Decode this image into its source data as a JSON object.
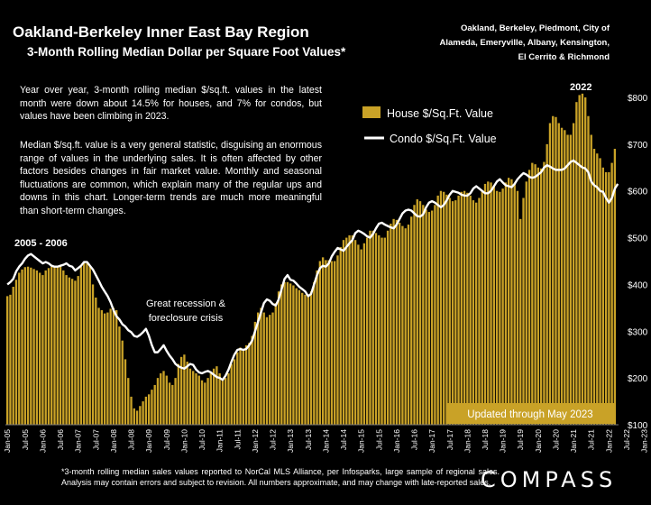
{
  "header": {
    "title": "Oakland-Berkeley Inner East Bay Region",
    "subtitle": "3-Month Rolling Median Dollar per Square Foot Values*",
    "region": "Oakland, Berkeley, Piedmont, City of Alameda, Emeryville, Albany, Kensington, El Cerrito & Richmond"
  },
  "commentary": {
    "para1": "Year over year, 3-month rolling median $/sq.ft. values in the latest month were down about 14.5% for houses, and 7% for condos, but values have been climbing in 2023.",
    "para2": "Median $/sq.ft. value is a very general statistic, disguising an enormous range of values in the underlying sales. It is often affected by other factors besides changes in fair market value. Monthly and seasonal fluctuations are common, which explain many of the regular ups and downs in this chart. Longer-term trends are much more meaningful than short-term changes."
  },
  "footnote": "*3-month rolling median sales values reported to NorCal MLS Alliance, per Infosparks, large sample of regional sales. Analysis may contain errors and subject to revision. All numbers approximate, and may change with late-reported sales.",
  "logo": "COMPASS",
  "colors": {
    "house": "#c9a227",
    "condo": "#ffffff",
    "background": "#000000",
    "badge": "#c9a227"
  },
  "chart_data": {
    "type": "bar",
    "x_labels": [
      "Jan-05",
      "Jul-05",
      "Jan-06",
      "Jul-06",
      "Jan-07",
      "Jul-07",
      "Jan-08",
      "Jul-08",
      "Jan-09",
      "Jul-09",
      "Jan-10",
      "Jul-10",
      "Jan-11",
      "Jul-11",
      "Jan-12",
      "Jul-12",
      "Jan-13",
      "Jul-13",
      "Jan-14",
      "Jul-14",
      "Jan-15",
      "Jul-15",
      "Jan-16",
      "Jul-16",
      "Jan-17",
      "Jul-17",
      "Jan-18",
      "Jul-18",
      "Jan-19",
      "Jul-19",
      "Jan-20",
      "Jul-20",
      "Jan-21",
      "Jul-21",
      "Jan-22",
      "Jul-22",
      "Jan-23"
    ],
    "y_ticks": [
      "$100",
      "$200",
      "$300",
      "$400",
      "$500",
      "$600",
      "$700",
      "$800"
    ],
    "ylim": [
      100,
      830
    ],
    "y_axis_position": "right",
    "legend": {
      "house": "House $/Sq.Ft. Value",
      "condo": "Condo $/Sq.Ft. Value",
      "placement": "top-right"
    },
    "annotations": {
      "peak_2006": "2005 - 2006",
      "recession": "Great recession & foreclosure crisis",
      "peak_2022": "2022",
      "updated": "Updated through May 2023"
    },
    "series": [
      {
        "name": "House $/Sq.Ft. Value",
        "type": "bar",
        "values": [
          375,
          378,
          395,
          410,
          425,
          432,
          437,
          438,
          436,
          433,
          430,
          425,
          420,
          430,
          435,
          438,
          440,
          440,
          438,
          430,
          420,
          415,
          412,
          408,
          418,
          438,
          448,
          445,
          440,
          400,
          372,
          350,
          345,
          338,
          340,
          348,
          350,
          345,
          310,
          280,
          240,
          200,
          160,
          135,
          130,
          140,
          150,
          160,
          165,
          175,
          185,
          200,
          210,
          215,
          205,
          190,
          185,
          200,
          230,
          245,
          250,
          235,
          220,
          215,
          210,
          205,
          195,
          190,
          200,
          210,
          220,
          225,
          210,
          195,
          200,
          210,
          230,
          240,
          255,
          265,
          262,
          270,
          275,
          290,
          320,
          340,
          350,
          340,
          330,
          335,
          340,
          360,
          385,
          400,
          405,
          405,
          402,
          398,
          392,
          388,
          382,
          378,
          375,
          385,
          405,
          430,
          450,
          458,
          452,
          452,
          450,
          450,
          462,
          480,
          495,
          500,
          505,
          505,
          495,
          485,
          475,
          488,
          500,
          515,
          515,
          510,
          505,
          500,
          500,
          515,
          530,
          540,
          538,
          532,
          525,
          520,
          528,
          545,
          570,
          582,
          578,
          570,
          560,
          555,
          558,
          570,
          590,
          600,
          598,
          592,
          585,
          578,
          580,
          590,
          598,
          600,
          596,
          590,
          580,
          575,
          585,
          600,
          615,
          620,
          618,
          610,
          600,
          598,
          605,
          618,
          628,
          625,
          615,
          600,
          540,
          585,
          620,
          645,
          660,
          657,
          650,
          648,
          662,
          700,
          745,
          760,
          758,
          745,
          735,
          730,
          720,
          720,
          745,
          790,
          805,
          808,
          800,
          760,
          720,
          690,
          680,
          670,
          650,
          640,
          640,
          660,
          690
        ]
      },
      {
        "name": "Condo $/Sq.Ft. Value",
        "type": "line",
        "values": [
          400,
          405,
          412,
          428,
          438,
          445,
          455,
          462,
          465,
          460,
          455,
          450,
          445,
          448,
          445,
          440,
          438,
          438,
          440,
          442,
          445,
          440,
          438,
          430,
          435,
          440,
          448,
          448,
          440,
          432,
          420,
          408,
          395,
          385,
          375,
          362,
          345,
          332,
          325,
          315,
          310,
          302,
          298,
          290,
          288,
          292,
          298,
          305,
          290,
          270,
          255,
          255,
          262,
          270,
          258,
          248,
          240,
          230,
          225,
          222,
          220,
          225,
          230,
          228,
          218,
          212,
          210,
          213,
          215,
          212,
          207,
          202,
          200,
          196,
          205,
          218,
          235,
          250,
          260,
          262,
          260,
          262,
          270,
          280,
          300,
          320,
          340,
          360,
          368,
          365,
          358,
          355,
          368,
          390,
          412,
          420,
          410,
          408,
          402,
          395,
          390,
          385,
          375,
          380,
          400,
          420,
          435,
          440,
          438,
          445,
          460,
          470,
          478,
          475,
          472,
          480,
          488,
          495,
          510,
          515,
          512,
          508,
          503,
          500,
          508,
          520,
          530,
          532,
          528,
          525,
          522,
          520,
          528,
          540,
          552,
          558,
          560,
          558,
          552,
          546,
          545,
          550,
          565,
          575,
          578,
          575,
          570,
          565,
          570,
          580,
          592,
          600,
          598,
          596,
          592,
          590,
          590,
          595,
          605,
          610,
          605,
          600,
          595,
          595,
          600,
          610,
          620,
          625,
          618,
          612,
          610,
          608,
          615,
          625,
          632,
          638,
          635,
          630,
          628,
          630,
          635,
          640,
          650,
          655,
          652,
          648,
          645,
          645,
          645,
          648,
          655,
          662,
          665,
          660,
          655,
          650,
          648,
          640,
          620,
          612,
          608,
          600,
          598,
          585,
          575,
          585,
          605,
          615
        ]
      }
    ]
  }
}
